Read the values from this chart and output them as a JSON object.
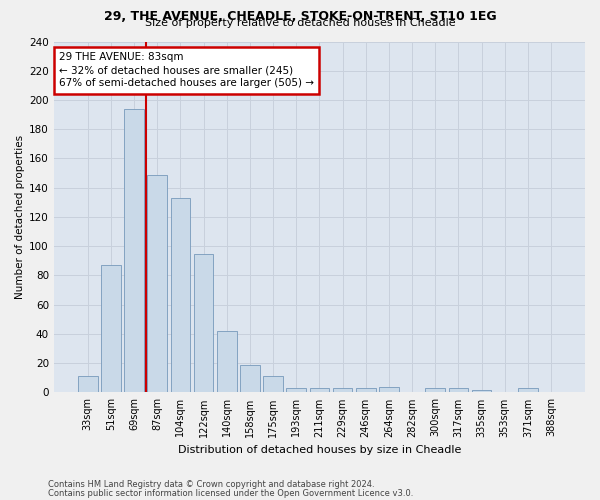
{
  "title1": "29, THE AVENUE, CHEADLE, STOKE-ON-TRENT, ST10 1EG",
  "title2": "Size of property relative to detached houses in Cheadle",
  "xlabel": "Distribution of detached houses by size in Cheadle",
  "ylabel": "Number of detached properties",
  "categories": [
    "33sqm",
    "51sqm",
    "69sqm",
    "87sqm",
    "104sqm",
    "122sqm",
    "140sqm",
    "158sqm",
    "175sqm",
    "193sqm",
    "211sqm",
    "229sqm",
    "246sqm",
    "264sqm",
    "282sqm",
    "300sqm",
    "317sqm",
    "335sqm",
    "353sqm",
    "371sqm",
    "388sqm"
  ],
  "values": [
    11,
    87,
    194,
    149,
    133,
    95,
    42,
    19,
    11,
    3,
    3,
    3,
    3,
    4,
    0,
    3,
    3,
    2,
    0,
    3,
    0
  ],
  "bar_color": "#c9d9e8",
  "bar_edge_color": "#7799bb",
  "grid_color": "#c8d0dc",
  "bg_color": "#dde5ef",
  "fig_bg_color": "#f0f0f0",
  "annotation_text": "29 THE AVENUE: 83sqm\n← 32% of detached houses are smaller (245)\n67% of semi-detached houses are larger (505) →",
  "annotation_box_color": "#ffffff",
  "annotation_box_edge": "#cc0000",
  "vline_color": "#cc0000",
  "footer1": "Contains HM Land Registry data © Crown copyright and database right 2024.",
  "footer2": "Contains public sector information licensed under the Open Government Licence v3.0.",
  "ylim": [
    0,
    240
  ],
  "yticks": [
    0,
    20,
    40,
    60,
    80,
    100,
    120,
    140,
    160,
    180,
    200,
    220,
    240
  ],
  "vline_pos": 2.5,
  "figsize": [
    6.0,
    5.0
  ],
  "dpi": 100
}
